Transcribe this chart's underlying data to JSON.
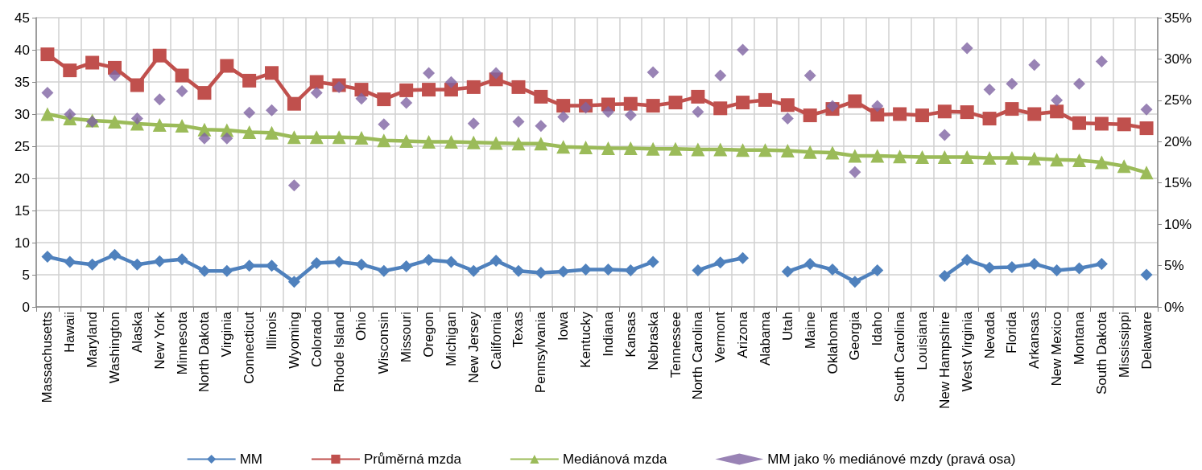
{
  "chart_data": {
    "type": "line",
    "categories": [
      "Massachusetts",
      "Hawaii",
      "Maryland",
      "Washington",
      "Alaska",
      "New York",
      "Minnesota",
      "North Dakota",
      "Virginia",
      "Connecticut",
      "Illinois",
      "Wyoming",
      "Colorado",
      "Rhode Island",
      "Ohio",
      "Wisconsin",
      "Missouri",
      "Oregon",
      "Michigan",
      "New Jersey",
      "California",
      "Texas",
      "Pennsylvania",
      "Iowa",
      "Kentucky",
      "Indiana",
      "Kansas",
      "Nebraska",
      "Tennessee",
      "North Carolina",
      "Vermont",
      "Arizona",
      "Alabama",
      "Utah",
      "Maine",
      "Oklahoma",
      "Georgia",
      "Idaho",
      "South Carolina",
      "Louisiana",
      "New Hampshire",
      "West Virginia",
      "Nevada",
      "Florida",
      "Arkansas",
      "New Mexico",
      "Montana",
      "South Dakota",
      "Mississippi",
      "Delaware"
    ],
    "series": [
      {
        "name": "MM",
        "marker": "diamond",
        "color": "#4f81bd",
        "values": [
          7.8,
          7.0,
          6.6,
          8.1,
          6.6,
          7.1,
          7.4,
          5.6,
          5.6,
          6.4,
          6.4,
          3.9,
          6.8,
          7.0,
          6.6,
          5.6,
          6.3,
          7.3,
          7.0,
          5.6,
          7.2,
          5.6,
          5.3,
          5.5,
          5.8,
          5.8,
          5.7,
          7.0,
          null,
          5.7,
          6.9,
          7.6,
          null,
          5.5,
          6.7,
          5.8,
          3.9,
          5.7,
          null,
          null,
          4.8,
          7.3,
          6.1,
          6.2,
          6.7,
          5.7,
          6.0,
          6.7,
          null,
          5.0
        ]
      },
      {
        "name": "Průměrná mzda",
        "marker": "square",
        "color": "#c0504d",
        "values": [
          39.3,
          36.8,
          38.0,
          37.2,
          34.5,
          39.1,
          36.0,
          33.3,
          37.5,
          35.2,
          36.4,
          31.6,
          35.0,
          34.5,
          33.8,
          32.3,
          33.7,
          33.8,
          33.8,
          34.2,
          35.4,
          34.2,
          32.7,
          31.3,
          31.3,
          31.5,
          31.6,
          31.3,
          31.8,
          32.7,
          30.9,
          31.8,
          32.2,
          31.4,
          29.8,
          30.8,
          32.0,
          29.9,
          30.0,
          29.8,
          30.4,
          30.3,
          29.3,
          30.8,
          30.0,
          30.4,
          28.6,
          28.5,
          28.4,
          27.8
        ]
      },
      {
        "name": "Mediánová mzda",
        "marker": "triangle",
        "color": "#9bbb59",
        "values": [
          30.0,
          29.3,
          29.0,
          28.8,
          28.5,
          28.3,
          28.2,
          27.6,
          27.5,
          27.2,
          27.1,
          26.4,
          26.4,
          26.4,
          26.3,
          25.9,
          25.8,
          25.7,
          25.7,
          25.6,
          25.5,
          25.4,
          25.4,
          24.9,
          24.8,
          24.7,
          24.7,
          24.6,
          24.6,
          24.5,
          24.5,
          24.4,
          24.4,
          24.3,
          24.1,
          24.0,
          23.5,
          23.5,
          23.4,
          23.3,
          23.3,
          23.3,
          23.2,
          23.2,
          23.1,
          22.9,
          22.8,
          22.5,
          21.9,
          20.9
        ]
      },
      {
        "name": "MM jako % mediánové mzdy (pravá osa)",
        "type": "scatter",
        "marker": "diamond",
        "axis": "y2",
        "color": "#8064a2",
        "values": [
          25.9,
          23.3,
          22.4,
          28.0,
          22.8,
          25.1,
          26.1,
          20.4,
          20.4,
          23.5,
          23.8,
          14.7,
          25.9,
          26.6,
          25.2,
          22.1,
          24.7,
          28.3,
          27.2,
          22.2,
          28.3,
          22.4,
          21.9,
          23.0,
          24.1,
          23.6,
          23.2,
          28.4,
          null,
          23.6,
          28.0,
          31.1,
          null,
          22.8,
          28.0,
          24.3,
          16.3,
          24.3,
          null,
          null,
          20.8,
          31.3,
          26.3,
          27.0,
          29.3,
          25.0,
          27.0,
          29.7,
          null,
          23.9
        ]
      }
    ],
    "ylim": [
      0,
      45
    ],
    "yticks": [
      0,
      5,
      10,
      15,
      20,
      25,
      30,
      35,
      40,
      45
    ],
    "y2lim": [
      0,
      35
    ],
    "y2ticks": [
      {
        "value": 0,
        "label": "0%"
      },
      {
        "value": 5,
        "label": "5%"
      },
      {
        "value": 10,
        "label": "10%"
      },
      {
        "value": 15,
        "label": "15%"
      },
      {
        "value": 20,
        "label": "20%"
      },
      {
        "value": 25,
        "label": "25%"
      },
      {
        "value": 30,
        "label": "30%"
      },
      {
        "value": 35,
        "label": "35%"
      }
    ],
    "grid": true,
    "legend": "bottom"
  }
}
